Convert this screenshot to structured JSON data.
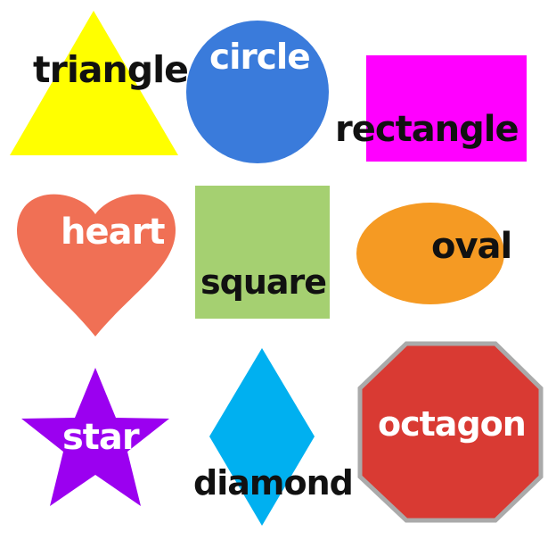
{
  "colors": {
    "triangle": "#ffff00",
    "circle": "#3a7bdb",
    "rectangle": "#ff00ff",
    "heart": "#f07055",
    "square": "#a5d071",
    "oval": "#f59a23",
    "star": "#9b00f0",
    "diamond": "#00b0f0",
    "octagon": "#d93a33",
    "octagon_border": "#aaaaaa",
    "dark_text": "#111111",
    "light_text": "#ffffff"
  },
  "labels": {
    "triangle": "triangle",
    "circle": "circle",
    "rectangle": "rectangle",
    "heart": "heart",
    "square": "square",
    "oval": "oval",
    "star": "star",
    "diamond": "diamond",
    "octagon": "octagon"
  }
}
